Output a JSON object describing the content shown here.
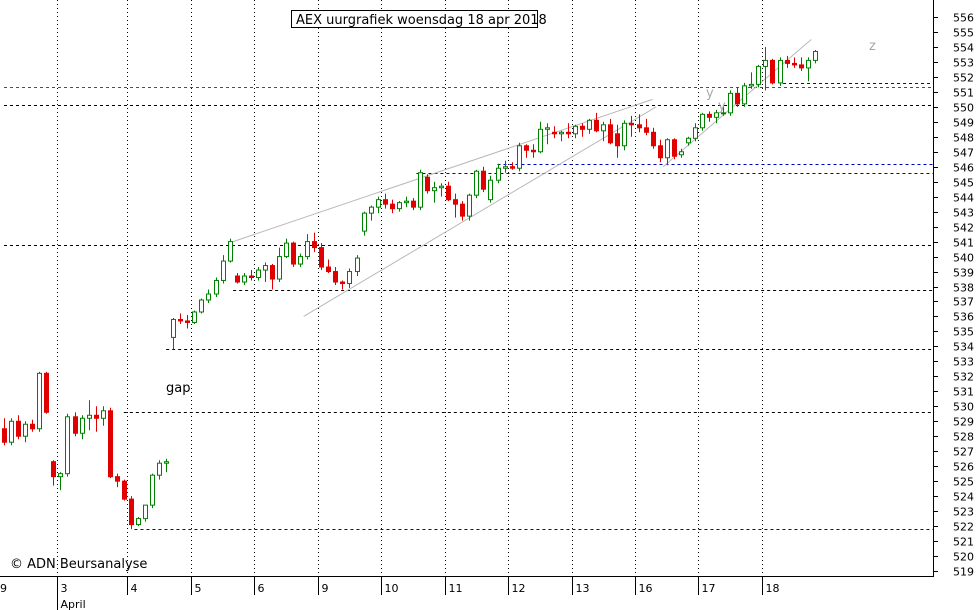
{
  "chart_data": {
    "type": "candlestick",
    "title": "AEX uurgrafiek woensdag 18 apr 2018",
    "copyright": "© ADN Beursanalyse",
    "annotation_gap": "gap",
    "annotation_y": "y",
    "annotation_z": "z",
    "month_label": "April",
    "ylim": [
      518.5,
      557.0
    ],
    "y_ticks": [
      519,
      520,
      521,
      522,
      523,
      524,
      525,
      526,
      527,
      528,
      529,
      530,
      531,
      532,
      533,
      534,
      535,
      536,
      537,
      538,
      539,
      540,
      541,
      542,
      543,
      544,
      545,
      546,
      547,
      548,
      549,
      550,
      551,
      552,
      553,
      554,
      555,
      556
    ],
    "x_ticks": [
      {
        "label": "9",
        "x": -1.5
      },
      {
        "label": "3",
        "x": 7.5
      },
      {
        "label": "4",
        "x": 17.5
      },
      {
        "label": "5",
        "x": 26.5
      },
      {
        "label": "6",
        "x": 35.5
      },
      {
        "label": "9",
        "x": 44.5
      },
      {
        "label": "10",
        "x": 53.5
      },
      {
        "label": "11",
        "x": 62.5
      },
      {
        "label": "12",
        "x": 71.5
      },
      {
        "label": "13",
        "x": 80.5
      },
      {
        "label": "16",
        "x": 89.5
      },
      {
        "label": "17",
        "x": 98.5
      },
      {
        "label": "18",
        "x": 107.5
      }
    ],
    "month_x": 7.5,
    "horizontal_levels": [
      {
        "value": 551.3,
        "color": "#c000c0",
        "from": 0
      },
      {
        "value": 550.1,
        "color": "#000000",
        "from": 0
      },
      {
        "value": 546.2,
        "color": "#0000c0",
        "from": 70.0
      },
      {
        "value": 545.6,
        "color": "#0000c0",
        "from": 58.5
      },
      {
        "value": 540.8,
        "color": "#000000",
        "from": 0
      },
      {
        "value": 537.8,
        "color": "#000000",
        "from": 32.5
      },
      {
        "value": 533.8,
        "color": "#000000",
        "from": 23.0
      },
      {
        "value": 529.6,
        "color": "#000000",
        "from": 17.0
      },
      {
        "value": 521.8,
        "color": "#0000c0",
        "from": 18.5
      },
      {
        "value": 551.6,
        "color": "#0000c0",
        "from": 110.5
      }
    ],
    "trendlines": [
      {
        "x1": 32.5,
        "y1": 541.0,
        "x2": 92.0,
        "y2": 550.5
      },
      {
        "x1": 42.5,
        "y1": 536.0,
        "x2": 92.5,
        "y2": 550.0
      },
      {
        "x1": 93.5,
        "y1": 546.0,
        "x2": 114.5,
        "y2": 554.5
      }
    ],
    "candles": [
      [
        528.5,
        529.2,
        527.4,
        527.6
      ],
      [
        527.6,
        529.2,
        527.4,
        529.0
      ],
      [
        529.0,
        529.4,
        527.8,
        528.0
      ],
      [
        528.0,
        529.0,
        527.6,
        528.8
      ],
      [
        528.8,
        529.1,
        528.3,
        528.5
      ],
      [
        528.5,
        532.3,
        528.3,
        532.2
      ],
      [
        532.2,
        532.3,
        529.5,
        529.6
      ],
      [
        526.3,
        526.4,
        524.7,
        525.3
      ],
      [
        525.3,
        525.6,
        524.4,
        525.5
      ],
      [
        525.5,
        529.5,
        525.3,
        529.3
      ],
      [
        529.3,
        529.6,
        528.0,
        528.2
      ],
      [
        528.2,
        529.4,
        527.8,
        529.2
      ],
      [
        529.2,
        530.4,
        528.4,
        529.4
      ],
      [
        529.4,
        530.0,
        528.3,
        529.2
      ],
      [
        529.2,
        530.0,
        528.7,
        529.7
      ],
      [
        529.7,
        529.9,
        525.2,
        525.3
      ],
      [
        525.3,
        525.5,
        524.6,
        525.0
      ],
      [
        525.0,
        525.1,
        523.7,
        523.8
      ],
      [
        523.8,
        524.0,
        521.8,
        522.1
      ],
      [
        522.1,
        522.6,
        522.0,
        522.5
      ],
      [
        522.5,
        523.4,
        522.3,
        523.4
      ],
      [
        523.4,
        525.5,
        523.2,
        525.4
      ],
      [
        525.4,
        526.4,
        525.1,
        526.2
      ],
      [
        526.2,
        526.5,
        525.6,
        526.3
      ],
      [
        534.6,
        535.9,
        533.8,
        535.8
      ],
      [
        535.8,
        536.2,
        535.5,
        535.7
      ],
      [
        535.7,
        536.1,
        535.2,
        535.6
      ],
      [
        535.6,
        536.4,
        535.5,
        536.3
      ],
      [
        536.3,
        537.2,
        536.2,
        537.1
      ],
      [
        537.1,
        537.8,
        536.9,
        537.5
      ],
      [
        537.5,
        538.6,
        537.3,
        538.4
      ],
      [
        538.4,
        540.1,
        538.2,
        539.7
      ],
      [
        539.7,
        541.2,
        539.6,
        541.0
      ],
      [
        538.7,
        538.9,
        538.2,
        538.3
      ],
      [
        538.3,
        538.9,
        538.1,
        538.7
      ],
      [
        538.7,
        539.1,
        538.4,
        538.6
      ],
      [
        538.6,
        539.3,
        538.4,
        539.1
      ],
      [
        539.1,
        539.6,
        538.3,
        539.4
      ],
      [
        539.4,
        539.5,
        537.8,
        538.5
      ],
      [
        538.5,
        540.6,
        538.3,
        540.0
      ],
      [
        540.0,
        541.2,
        539.9,
        540.9
      ],
      [
        540.9,
        541.0,
        539.3,
        539.5
      ],
      [
        539.5,
        540.2,
        539.3,
        540.0
      ],
      [
        540.0,
        541.5,
        539.8,
        541.0
      ],
      [
        541.0,
        541.6,
        540.3,
        540.6
      ],
      [
        540.6,
        540.9,
        539.1,
        539.3
      ],
      [
        539.3,
        539.8,
        538.9,
        539.0
      ],
      [
        539.0,
        539.3,
        538.1,
        538.3
      ],
      [
        538.3,
        538.4,
        537.8,
        538.2
      ],
      [
        538.2,
        539.2,
        537.9,
        539.0
      ],
      [
        539.0,
        540.1,
        538.7,
        539.9
      ],
      [
        541.7,
        543.0,
        541.4,
        542.9
      ],
      [
        542.9,
        543.4,
        542.4,
        543.3
      ],
      [
        543.3,
        544.0,
        542.9,
        543.8
      ],
      [
        543.8,
        544.2,
        543.2,
        543.5
      ],
      [
        543.5,
        543.8,
        542.9,
        543.2
      ],
      [
        543.2,
        543.7,
        543.0,
        543.6
      ],
      [
        543.6,
        544.0,
        543.3,
        543.7
      ],
      [
        543.7,
        543.9,
        543.1,
        543.3
      ],
      [
        543.3,
        545.8,
        543.1,
        545.6
      ],
      [
        545.3,
        545.5,
        544.2,
        544.4
      ],
      [
        544.4,
        545.0,
        543.6,
        544.6
      ],
      [
        544.6,
        544.9,
        544.0,
        544.7
      ],
      [
        544.7,
        545.0,
        543.7,
        543.8
      ],
      [
        543.8,
        544.2,
        542.6,
        543.5
      ],
      [
        543.5,
        543.7,
        542.4,
        542.7
      ],
      [
        542.7,
        544.2,
        542.4,
        544.1
      ],
      [
        544.1,
        545.8,
        543.9,
        545.7
      ],
      [
        545.7,
        546.0,
        544.3,
        544.5
      ],
      [
        543.8,
        545.4,
        543.6,
        545.1
      ],
      [
        545.1,
        546.2,
        544.9,
        545.9
      ],
      [
        545.9,
        546.4,
        545.6,
        546.0
      ],
      [
        546.0,
        546.3,
        545.8,
        545.9
      ],
      [
        545.9,
        547.6,
        545.7,
        547.4
      ],
      [
        547.4,
        547.5,
        546.6,
        547.1
      ],
      [
        547.1,
        547.5,
        546.6,
        547.0
      ],
      [
        547.0,
        549.0,
        546.9,
        548.5
      ],
      [
        548.5,
        548.9,
        547.5,
        548.6
      ],
      [
        548.3,
        548.7,
        547.9,
        548.2
      ],
      [
        548.2,
        548.4,
        547.7,
        548.3
      ],
      [
        548.3,
        548.9,
        547.9,
        548.2
      ],
      [
        548.2,
        548.8,
        547.9,
        548.7
      ],
      [
        548.7,
        548.9,
        548.0,
        548.5
      ],
      [
        548.5,
        549.2,
        548.2,
        549.1
      ],
      [
        549.1,
        549.6,
        548.3,
        548.4
      ],
      [
        548.4,
        549.0,
        547.7,
        548.8
      ],
      [
        548.8,
        549.2,
        547.5,
        547.6
      ],
      [
        548.2,
        548.8,
        546.6,
        547.4
      ],
      [
        547.4,
        549.1,
        547.1,
        548.9
      ],
      [
        548.9,
        549.4,
        548.0,
        548.8
      ],
      [
        548.8,
        549.5,
        548.3,
        548.6
      ],
      [
        548.6,
        549.2,
        548.1,
        548.3
      ],
      [
        548.3,
        548.6,
        547.2,
        547.4
      ],
      [
        547.4,
        547.8,
        546.3,
        546.6
      ],
      [
        546.6,
        547.9,
        546.1,
        547.8
      ],
      [
        547.8,
        547.9,
        546.5,
        546.7
      ],
      [
        546.8,
        547.2,
        546.6,
        547.0
      ],
      [
        547.6,
        548.0,
        547.4,
        547.9
      ],
      [
        547.9,
        548.9,
        547.7,
        548.6
      ],
      [
        548.6,
        549.6,
        548.4,
        549.5
      ],
      [
        549.5,
        549.7,
        549.0,
        549.3
      ],
      [
        549.3,
        549.8,
        548.9,
        549.6
      ],
      [
        549.6,
        550.1,
        549.4,
        549.6
      ],
      [
        549.6,
        551.1,
        549.4,
        550.9
      ],
      [
        550.9,
        551.3,
        550.0,
        550.2
      ],
      [
        550.2,
        551.6,
        550.0,
        551.4
      ],
      [
        551.4,
        552.3,
        551.2,
        551.5
      ],
      [
        551.5,
        552.8,
        551.3,
        552.7
      ],
      [
        552.7,
        554.0,
        551.1,
        553.1
      ],
      [
        553.1,
        553.2,
        551.5,
        551.6
      ],
      [
        551.6,
        553.3,
        551.4,
        553.1
      ],
      [
        553.1,
        553.4,
        552.6,
        552.9
      ],
      [
        552.9,
        553.3,
        552.6,
        552.8
      ],
      [
        552.8,
        553.3,
        552.4,
        552.6
      ],
      [
        552.6,
        553.3,
        551.7,
        553.1
      ],
      [
        553.1,
        553.8,
        552.9,
        553.7
      ]
    ]
  }
}
